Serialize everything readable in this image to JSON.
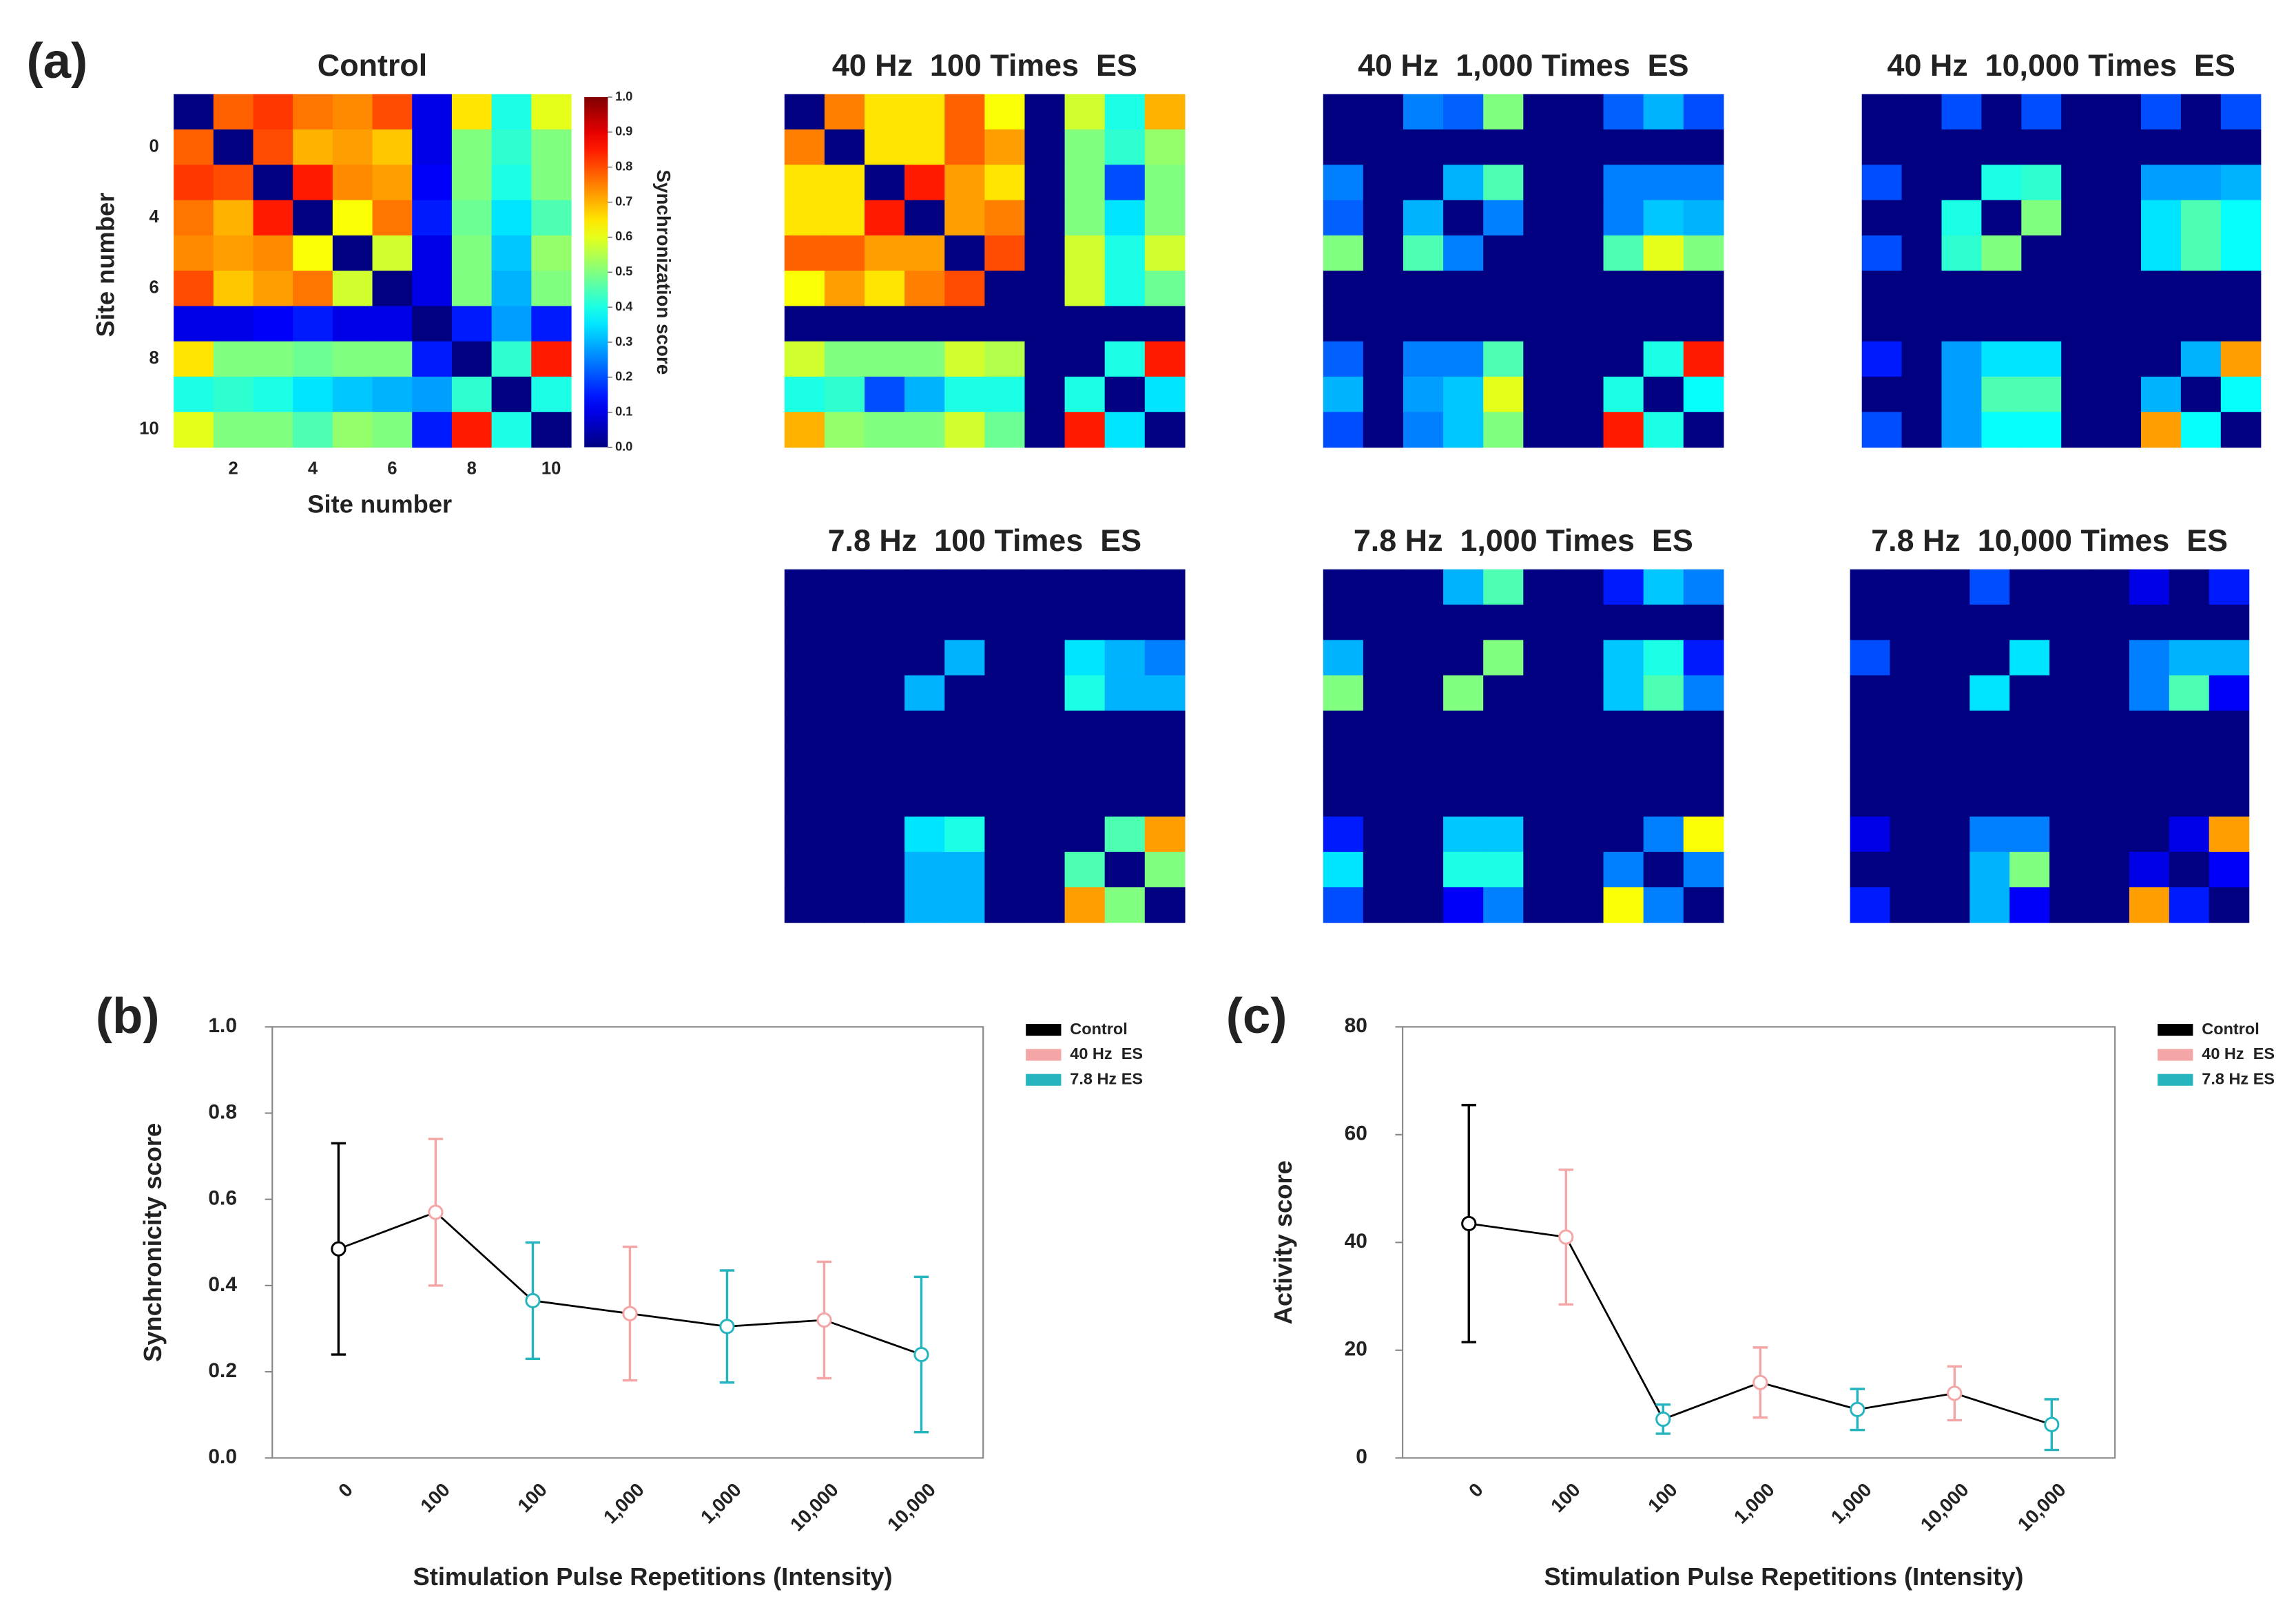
{
  "chart_data": [
    {
      "type": "heatmap",
      "panel_label": "(a)",
      "title": "Control",
      "x_label": "Site number",
      "y_label": "Site number",
      "xticks": [
        2,
        4,
        6,
        8,
        10
      ],
      "yticks": [
        0,
        4,
        6,
        8,
        10
      ],
      "colorbar": {
        "label": "Synchronization score",
        "lim": [
          0,
          1
        ],
        "ticks": [
          {
            "value": 0,
            "label": "0.0"
          },
          {
            "value": 0.1,
            "label": "0.1"
          },
          {
            "value": 0.2,
            "label": "0.2"
          },
          {
            "value": 0.3,
            "label": "0.3"
          },
          {
            "value": 0.4,
            "label": "0.4"
          },
          {
            "value": 0.5,
            "label": "0.5"
          },
          {
            "value": 0.6,
            "label": "0.6"
          },
          {
            "value": 0.7,
            "label": "0.7"
          },
          {
            "value": 0.8,
            "label": "0.8"
          },
          {
            "value": 0.9,
            "label": "0.9"
          },
          {
            "value": 1,
            "label": "1.0"
          }
        ]
      },
      "values": [
        [
          0,
          0.78,
          0.82,
          0.76,
          0.74,
          0.8,
          0.1,
          0.65,
          0.4,
          0.6
        ],
        [
          0.78,
          0,
          0.8,
          0.7,
          0.72,
          0.68,
          0.1,
          0.5,
          0.42,
          0.5
        ],
        [
          0.82,
          0.8,
          0,
          0.85,
          0.74,
          0.72,
          0.12,
          0.5,
          0.4,
          0.5
        ],
        [
          0.76,
          0.7,
          0.85,
          0,
          0.62,
          0.76,
          0.15,
          0.48,
          0.35,
          0.45
        ],
        [
          0.74,
          0.72,
          0.74,
          0.62,
          0,
          0.58,
          0.1,
          0.5,
          0.32,
          0.52
        ],
        [
          0.8,
          0.68,
          0.72,
          0.76,
          0.58,
          0,
          0.1,
          0.5,
          0.3,
          0.5
        ],
        [
          0.1,
          0.1,
          0.12,
          0.15,
          0.1,
          0.1,
          0,
          0.15,
          0.28,
          0.15
        ],
        [
          0.65,
          0.5,
          0.5,
          0.48,
          0.5,
          0.5,
          0.15,
          0,
          0.42,
          0.85
        ],
        [
          0.4,
          0.42,
          0.4,
          0.35,
          0.32,
          0.3,
          0.28,
          0.42,
          0,
          0.4
        ],
        [
          0.6,
          0.5,
          0.5,
          0.45,
          0.52,
          0.5,
          0.15,
          0.85,
          0.4,
          0
        ]
      ]
    },
    {
      "type": "heatmap",
      "title": "40 Hz  100 Times  ES",
      "values": [
        [
          0,
          0.75,
          0.65,
          0.65,
          0.78,
          0.62,
          0,
          0.58,
          0.4,
          0.7
        ],
        [
          0.75,
          0,
          0.65,
          0.65,
          0.78,
          0.72,
          0,
          0.5,
          0.42,
          0.52
        ],
        [
          0.65,
          0.65,
          0,
          0.85,
          0.72,
          0.65,
          0,
          0.5,
          0.2,
          0.5
        ],
        [
          0.65,
          0.65,
          0.85,
          0,
          0.72,
          0.75,
          0,
          0.5,
          0.35,
          0.5
        ],
        [
          0.78,
          0.78,
          0.72,
          0.72,
          0,
          0.8,
          0,
          0.58,
          0.4,
          0.58
        ],
        [
          0.62,
          0.72,
          0.65,
          0.75,
          0.8,
          0,
          0,
          0.58,
          0.4,
          0.48
        ],
        [
          0,
          0,
          0,
          0,
          0,
          0,
          0,
          0,
          0,
          0
        ],
        [
          0.58,
          0.5,
          0.5,
          0.5,
          0.58,
          0.55,
          0,
          0,
          0.4,
          0.85
        ],
        [
          0.4,
          0.42,
          0.2,
          0.3,
          0.4,
          0.4,
          0,
          0.4,
          0,
          0.35
        ],
        [
          0.7,
          0.52,
          0.5,
          0.5,
          0.58,
          0.48,
          0,
          0.85,
          0.35,
          0
        ]
      ]
    },
    {
      "type": "heatmap",
      "title": "40 Hz  1,000 Times  ES",
      "values": [
        [
          0,
          0,
          0.25,
          0.22,
          0.5,
          0,
          0,
          0.22,
          0.3,
          0.2
        ],
        [
          0,
          0,
          0,
          0,
          0,
          0,
          0,
          0,
          0,
          0
        ],
        [
          0.25,
          0,
          0,
          0.3,
          0.45,
          0,
          0,
          0.25,
          0.25,
          0.25
        ],
        [
          0.22,
          0,
          0.3,
          0,
          0.25,
          0,
          0,
          0.25,
          0.32,
          0.3
        ],
        [
          0.5,
          0,
          0.45,
          0.25,
          0,
          0,
          0,
          0.45,
          0.6,
          0.5
        ],
        [
          0,
          0,
          0,
          0,
          0,
          0,
          0,
          0,
          0,
          0
        ],
        [
          0,
          0,
          0,
          0,
          0,
          0,
          0,
          0,
          0,
          0
        ],
        [
          0.22,
          0,
          0.25,
          0.25,
          0.45,
          0,
          0,
          0,
          0.4,
          0.85
        ],
        [
          0.3,
          0,
          0.28,
          0.32,
          0.6,
          0,
          0,
          0.4,
          0,
          0.38
        ],
        [
          0.2,
          0,
          0.25,
          0.32,
          0.5,
          0,
          0,
          0.85,
          0.4,
          0
        ]
      ]
    },
    {
      "type": "heatmap",
      "title": "40 Hz  10,000 Times  ES",
      "values": [
        [
          0,
          0,
          0.2,
          0,
          0.2,
          0,
          0,
          0.2,
          0,
          0.2
        ],
        [
          0,
          0,
          0,
          0,
          0,
          0,
          0,
          0,
          0,
          0
        ],
        [
          0.2,
          0,
          0,
          0.4,
          0.42,
          0,
          0,
          0.28,
          0.28,
          0.3
        ],
        [
          0,
          0,
          0.4,
          0,
          0.5,
          0,
          0,
          0.35,
          0.45,
          0.38
        ],
        [
          0.2,
          0,
          0.42,
          0.5,
          0,
          0,
          0,
          0.35,
          0.45,
          0.38
        ],
        [
          0,
          0,
          0,
          0,
          0,
          0,
          0,
          0,
          0,
          0
        ],
        [
          0,
          0,
          0,
          0,
          0,
          0,
          0,
          0,
          0,
          0
        ],
        [
          0.15,
          0,
          0.28,
          0.35,
          0.35,
          0,
          0,
          0,
          0.3,
          0.72
        ],
        [
          0,
          0,
          0.28,
          0.45,
          0.45,
          0,
          0,
          0.3,
          0,
          0.38
        ],
        [
          0.2,
          0,
          0.28,
          0.38,
          0.38,
          0,
          0,
          0.72,
          0.38,
          0
        ]
      ]
    },
    {
      "type": "heatmap",
      "title": "7.8 Hz  100 Times  ES",
      "values": [
        [
          0,
          0,
          0,
          0,
          0,
          0,
          0,
          0,
          0,
          0
        ],
        [
          0,
          0,
          0,
          0,
          0,
          0,
          0,
          0,
          0,
          0
        ],
        [
          0,
          0,
          0,
          0,
          0.3,
          0,
          0,
          0.35,
          0.3,
          0.25
        ],
        [
          0,
          0,
          0,
          0.3,
          0,
          0,
          0,
          0.4,
          0.3,
          0.3
        ],
        [
          0,
          0,
          0,
          0,
          0,
          0,
          0,
          0,
          0,
          0
        ],
        [
          0,
          0,
          0,
          0,
          0,
          0,
          0,
          0,
          0,
          0
        ],
        [
          0,
          0,
          0,
          0,
          0,
          0,
          0,
          0,
          0,
          0
        ],
        [
          0,
          0,
          0,
          0.35,
          0.4,
          0,
          0,
          0,
          0.45,
          0.72
        ],
        [
          0,
          0,
          0,
          0.3,
          0.3,
          0,
          0,
          0.45,
          0,
          0.5
        ],
        [
          0,
          0,
          0,
          0.3,
          0.3,
          0,
          0,
          0.72,
          0.5,
          0
        ]
      ]
    },
    {
      "type": "heatmap",
      "title": "7.8 Hz  1,000 Times  ES",
      "values": [
        [
          0,
          0,
          0,
          0.3,
          0.45,
          0,
          0,
          0.15,
          0.32,
          0.25
        ],
        [
          0,
          0,
          0,
          0,
          0,
          0,
          0,
          0,
          0,
          0
        ],
        [
          0.3,
          0,
          0,
          0,
          0.5,
          0,
          0,
          0.32,
          0.4,
          0.15
        ],
        [
          0.5,
          0,
          0,
          0.5,
          0,
          0,
          0,
          0.32,
          0.45,
          0.25
        ],
        [
          0,
          0,
          0,
          0,
          0,
          0,
          0,
          0,
          0,
          0
        ],
        [
          0,
          0,
          0,
          0,
          0,
          0,
          0,
          0,
          0,
          0
        ],
        [
          0,
          0,
          0,
          0,
          0,
          0,
          0,
          0,
          0,
          0
        ],
        [
          0.15,
          0,
          0,
          0.32,
          0.32,
          0,
          0,
          0,
          0.25,
          0.62
        ],
        [
          0.35,
          0,
          0,
          0.4,
          0.4,
          0,
          0,
          0.25,
          0,
          0.25
        ],
        [
          0.2,
          0,
          0,
          0.12,
          0.25,
          0,
          0,
          0.62,
          0.25,
          0
        ]
      ]
    },
    {
      "type": "heatmap",
      "title": "7.8 Hz  10,000 Times  ES",
      "values": [
        [
          0,
          0,
          0,
          0.2,
          0,
          0,
          0,
          0.1,
          0,
          0.15
        ],
        [
          0,
          0,
          0,
          0,
          0,
          0,
          0,
          0,
          0,
          0
        ],
        [
          0.2,
          0,
          0,
          0,
          0.35,
          0,
          0,
          0.25,
          0.3,
          0.3
        ],
        [
          0,
          0,
          0,
          0.35,
          0,
          0,
          0,
          0.25,
          0.45,
          0.12
        ],
        [
          0,
          0,
          0,
          0,
          0,
          0,
          0,
          0,
          0,
          0
        ],
        [
          0,
          0,
          0,
          0,
          0,
          0,
          0,
          0,
          0,
          0
        ],
        [
          0,
          0,
          0,
          0,
          0,
          0,
          0,
          0,
          0,
          0
        ],
        [
          0.1,
          0,
          0,
          0.25,
          0.25,
          0,
          0,
          0,
          0.1,
          0.72
        ],
        [
          0,
          0,
          0,
          0.3,
          0.5,
          0,
          0,
          0.1,
          0,
          0.12
        ],
        [
          0.15,
          0,
          0,
          0.3,
          0.12,
          0,
          0,
          0.72,
          0.15,
          0
        ]
      ]
    },
    {
      "type": "line",
      "panel_label": "(b)",
      "x_label": "Stimulation Pulse Repetitions (Intensity)",
      "y_label": "Synchronicity score",
      "categories": [
        "0",
        "100",
        "100",
        "1,000",
        "1,000",
        "10,000",
        "10,000"
      ],
      "values": [
        0.485,
        0.57,
        0.365,
        0.335,
        0.305,
        0.32,
        0.24
      ],
      "errors": [
        0.245,
        0.17,
        0.135,
        0.155,
        0.13,
        0.135,
        0.18
      ],
      "point_colors": [
        "#000000",
        "#f4a6a6",
        "#26b5be",
        "#f4a6a6",
        "#26b5be",
        "#f4a6a6",
        "#26b5be"
      ],
      "series": [
        {
          "name": "Control",
          "color": "#000000"
        },
        {
          "name": "40 Hz  ES",
          "color": "#f4a6a6"
        },
        {
          "name": "7.8 Hz ES",
          "color": "#26b5be"
        }
      ],
      "ylim": [
        0,
        1
      ],
      "yticks": [
        {
          "value": 0,
          "label": "0.0"
        },
        {
          "value": 0.2,
          "label": "0.2"
        },
        {
          "value": 0.4,
          "label": "0.4"
        },
        {
          "value": 0.6,
          "label": "0.6"
        },
        {
          "value": 0.8,
          "label": "0.8"
        },
        {
          "value": 1,
          "label": "1.0"
        }
      ]
    },
    {
      "type": "line",
      "panel_label": "(c)",
      "x_label": "Stimulation Pulse Repetitions (Intensity)",
      "y_label": "Activity score",
      "categories": [
        "0",
        "100",
        "100",
        "1,000",
        "1,000",
        "10,000",
        "10,000"
      ],
      "values": [
        43.5,
        41,
        7.2,
        14,
        9,
        12,
        6.2
      ],
      "errors": [
        22,
        12.5,
        2.7,
        6.5,
        3.8,
        5,
        4.7
      ],
      "point_colors": [
        "#000000",
        "#f4a6a6",
        "#26b5be",
        "#f4a6a6",
        "#26b5be",
        "#f4a6a6",
        "#26b5be"
      ],
      "series": [
        {
          "name": "Control",
          "color": "#000000"
        },
        {
          "name": "40 Hz  ES",
          "color": "#f4a6a6"
        },
        {
          "name": "7.8 Hz ES",
          "color": "#26b5be"
        }
      ],
      "ylim": [
        0,
        80
      ],
      "yticks": [
        0,
        20,
        40,
        60,
        80
      ]
    }
  ]
}
